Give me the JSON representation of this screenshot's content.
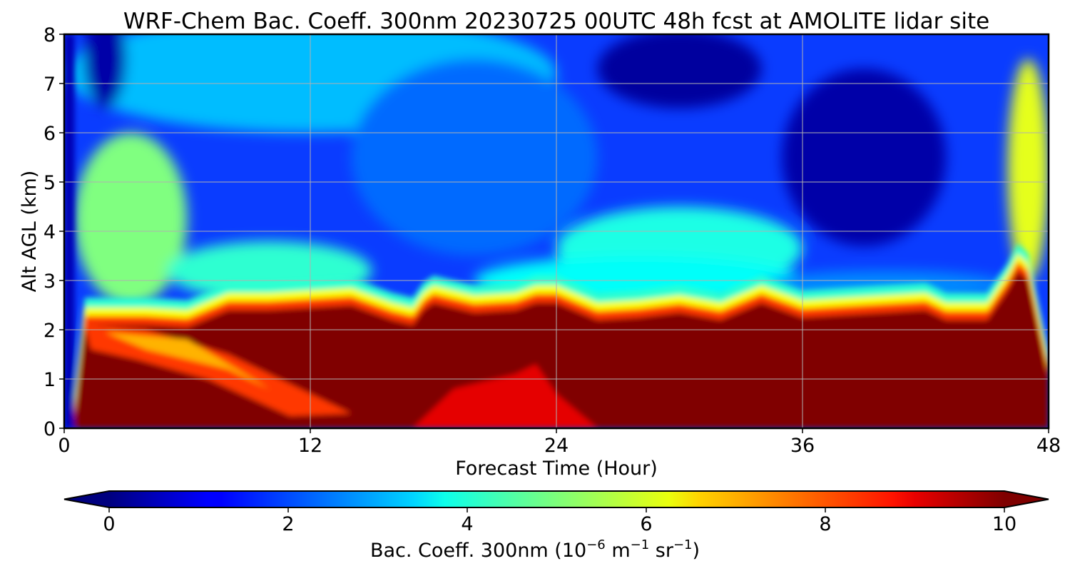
{
  "chart_data": {
    "type": "heatmap",
    "title": "WRF-Chem Bac. Coeff. 300nm  20230725 00UTC 48h fcst at AMOLITE lidar site",
    "xlabel": "Forecast Time (Hour)",
    "ylabel": "Alt AGL (km)",
    "xlim": [
      0,
      48
    ],
    "ylim": [
      0,
      8
    ],
    "x_ticks": [
      0,
      12,
      24,
      36,
      48
    ],
    "y_ticks": [
      0,
      1,
      2,
      3,
      4,
      5,
      6,
      7,
      8
    ],
    "grid": true,
    "colormap": "jet",
    "colorbar": {
      "label_main": "Bac. Coeff. 300nm  (10",
      "label_exp1": "−6",
      "label_mid": " m",
      "label_exp2": "−1",
      "label_mid2": " sr",
      "label_exp3": "−1",
      "label_end": ")",
      "range": [
        0,
        10
      ],
      "ticks": [
        0,
        2,
        4,
        6,
        8,
        10
      ],
      "extend": "both",
      "orientation": "horizontal",
      "under_color": "#00007f",
      "over_color": "#7f0000"
    },
    "x": [
      0,
      0.5,
      1,
      2,
      4,
      6,
      8,
      10,
      12,
      14,
      16,
      17,
      17.5,
      18,
      20,
      22,
      23,
      24,
      26,
      28,
      30,
      32,
      34,
      36,
      38,
      40,
      42,
      43,
      44,
      45,
      46,
      46.5,
      47,
      48
    ],
    "layer_top_km": [
      0,
      0.1,
      2.1,
      2.1,
      2.1,
      2.05,
      2.4,
      2.4,
      2.45,
      2.5,
      2.2,
      2.1,
      2.4,
      2.55,
      2.35,
      2.4,
      2.55,
      2.55,
      2.2,
      2.25,
      2.35,
      2.2,
      2.55,
      2.25,
      2.3,
      2.35,
      2.4,
      2.2,
      2.2,
      2.2,
      2.8,
      3.2,
      3.0,
      1.0
    ],
    "layer_value": 10,
    "low_level_maximum": {
      "x_range": [
        17,
        26
      ],
      "top_km": 1.3,
      "value": 9
    },
    "secondary_plume": {
      "x_range": [
        1,
        14
      ],
      "alt_range_km": [
        0.3,
        2.3
      ],
      "value": 7
    },
    "aloft_aerosol": [
      {
        "x_range": [
          0.5,
          6
        ],
        "alt_range_km": [
          2.5,
          6
        ],
        "value": 5
      },
      {
        "x_range": [
          24,
          36
        ],
        "alt_range_km": [
          2.8,
          4.5
        ],
        "value": 4
      },
      {
        "x_range": [
          46,
          48
        ],
        "alt_range_km": [
          3,
          7.5
        ],
        "value": 6
      }
    ],
    "background_upper_value": 1.5
  }
}
